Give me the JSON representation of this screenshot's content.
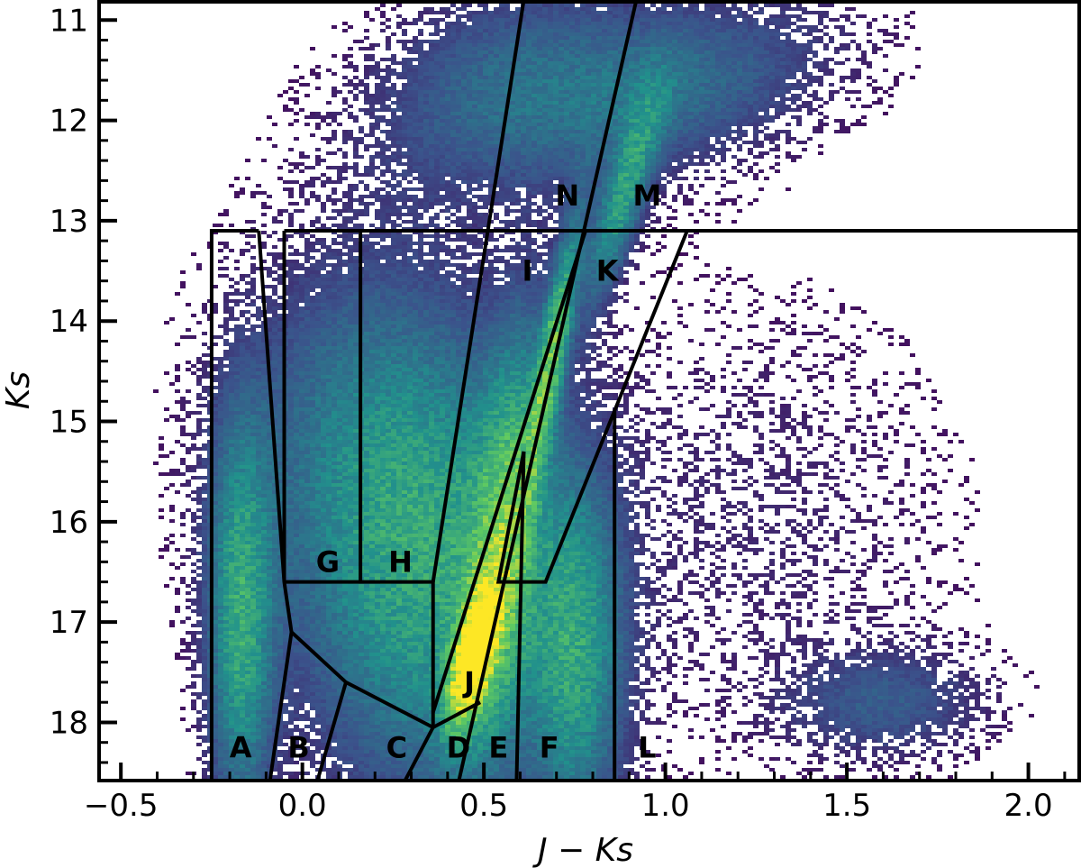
{
  "chart_data": {
    "type": "heatmap",
    "title": "",
    "xlabel": "J − Ks",
    "ylabel": "Ks",
    "xlim": [
      -0.56,
      2.14
    ],
    "ylim": [
      10.8,
      18.58
    ],
    "y_inverted": true,
    "x_ticks": [
      -0.5,
      0.0,
      0.5,
      1.0,
      1.5,
      2.0
    ],
    "x_tick_labels": [
      "−0.5",
      "0.0",
      "0.5",
      "1.0",
      "1.5",
      "2.0"
    ],
    "y_ticks": [
      11,
      12,
      13,
      14,
      15,
      16,
      17,
      18
    ],
    "y_tick_labels": [
      "11",
      "12",
      "13",
      "14",
      "15",
      "16",
      "17",
      "18"
    ],
    "colormap": [
      "#440154",
      "#3b528b",
      "#21918c",
      "#5ec962",
      "#fde725"
    ],
    "density_components": [
      {
        "x": 0.47,
        "y": 17.35,
        "sx": 0.045,
        "sy": 0.45,
        "weight": 1.0,
        "rho": -0.6
      },
      {
        "x": 0.55,
        "y": 16.2,
        "sx": 0.07,
        "sy": 1.4,
        "weight": 0.45,
        "rho": -0.5
      },
      {
        "x": 0.69,
        "y": 14.3,
        "sx": 0.05,
        "sy": 0.9,
        "weight": 0.55,
        "rho": -0.85
      },
      {
        "x": 0.88,
        "y": 12.8,
        "sx": 0.07,
        "sy": 0.7,
        "weight": 0.4,
        "rho": -0.8
      },
      {
        "x": -0.17,
        "y": 17.0,
        "sx": 0.06,
        "sy": 1.3,
        "weight": 0.45,
        "rho": 0
      },
      {
        "x": 0.35,
        "y": 16.8,
        "sx": 0.22,
        "sy": 1.4,
        "weight": 0.35,
        "rho": 0
      },
      {
        "x": 0.2,
        "y": 15.2,
        "sx": 0.25,
        "sy": 1.3,
        "weight": 0.25,
        "rho": 0
      },
      {
        "x": 0.75,
        "y": 17.3,
        "sx": 0.09,
        "sy": 1.2,
        "weight": 0.4,
        "rho": 0
      },
      {
        "x": 1.0,
        "y": 11.7,
        "sx": 0.3,
        "sy": 0.6,
        "weight": 0.22,
        "rho": -0.4
      },
      {
        "x": 0.55,
        "y": 11.6,
        "sx": 0.25,
        "sy": 0.7,
        "weight": 0.18,
        "rho": -0.3
      },
      {
        "x": 1.6,
        "y": 17.8,
        "sx": 0.18,
        "sy": 0.35,
        "weight": 0.16,
        "rho": 0
      },
      {
        "x": 1.2,
        "y": 16.0,
        "sx": 0.4,
        "sy": 1.5,
        "weight": 0.05,
        "rho": 0
      }
    ],
    "boundaries": [
      [
        [
          -0.25,
          18.6
        ],
        [
          -0.25,
          13.1
        ],
        [
          -0.12,
          13.1
        ]
      ],
      [
        [
          -0.12,
          13.1
        ],
        [
          -0.05,
          16.6
        ],
        [
          -0.03,
          17.1
        ],
        [
          -0.09,
          18.6
        ]
      ],
      [
        [
          -0.05,
          13.1
        ],
        [
          -0.05,
          16.6
        ]
      ],
      [
        [
          -0.05,
          13.1
        ],
        [
          2.14,
          13.1
        ]
      ],
      [
        [
          0.16,
          13.1
        ],
        [
          0.16,
          16.6
        ]
      ],
      [
        [
          -0.05,
          16.6
        ],
        [
          0.36,
          16.6
        ],
        [
          0.36,
          18.05
        ]
      ],
      [
        [
          -0.03,
          17.1
        ],
        [
          0.12,
          17.6
        ],
        [
          0.36,
          18.05
        ]
      ],
      [
        [
          0.12,
          17.6
        ],
        [
          0.04,
          18.6
        ]
      ],
      [
        [
          0.36,
          18.05
        ],
        [
          0.28,
          18.6
        ]
      ],
      [
        [
          0.36,
          18.05
        ],
        [
          0.49,
          17.8
        ]
      ],
      [
        [
          0.36,
          16.6
        ],
        [
          0.61,
          10.8
        ]
      ],
      [
        [
          0.78,
          13.1
        ],
        [
          0.36,
          17.9
        ]
      ],
      [
        [
          0.92,
          10.8
        ],
        [
          0.43,
          18.6
        ]
      ],
      [
        [
          0.61,
          15.3
        ],
        [
          0.59,
          18.6
        ]
      ],
      [
        [
          0.61,
          15.3
        ],
        [
          0.54,
          16.6
        ],
        [
          0.67,
          16.6
        ],
        [
          1.06,
          13.1
        ]
      ],
      [
        [
          0.86,
          14.9
        ],
        [
          0.86,
          18.6
        ]
      ]
    ],
    "regions": [
      {
        "label": "A",
        "x": -0.17,
        "y": 18.25
      },
      {
        "label": "B",
        "x": -0.01,
        "y": 18.25
      },
      {
        "label": "C",
        "x": 0.26,
        "y": 18.25
      },
      {
        "label": "D",
        "x": 0.43,
        "y": 18.25
      },
      {
        "label": "E",
        "x": 0.54,
        "y": 18.25
      },
      {
        "label": "F",
        "x": 0.68,
        "y": 18.25
      },
      {
        "label": "G",
        "x": 0.07,
        "y": 16.4
      },
      {
        "label": "H",
        "x": 0.27,
        "y": 16.4
      },
      {
        "label": "I",
        "x": 0.62,
        "y": 13.5
      },
      {
        "label": "J",
        "x": 0.46,
        "y": 17.6
      },
      {
        "label": "K",
        "x": 0.84,
        "y": 13.5
      },
      {
        "label": "L",
        "x": 0.95,
        "y": 18.25
      },
      {
        "label": "M",
        "x": 0.95,
        "y": 12.75
      },
      {
        "label": "N",
        "x": 0.73,
        "y": 12.75
      }
    ]
  }
}
